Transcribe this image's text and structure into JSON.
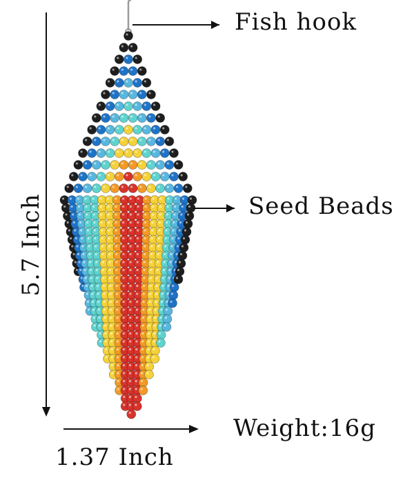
{
  "labels": {
    "fish_hook": "Fish hook",
    "seed_beads": "Seed Beads",
    "weight": "Weight:16g",
    "width": "1.37 Inch",
    "height": "5.7 Inch"
  },
  "colors": {
    "background": "#ffffff",
    "text": "#111111",
    "arrow": "#111111",
    "bead_black": "#1e1e1e",
    "bead_blue": "#1f73c7",
    "bead_light_blue": "#58b7de",
    "bead_turquoise": "#5fd3cf",
    "bead_yellow": "#f5d23a",
    "bead_orange": "#f29a25",
    "bead_red": "#d8332b",
    "hook_silver": "#9a9a9a"
  },
  "earring": {
    "bead_rows": [
      [
        "black"
      ],
      [
        "black",
        "black"
      ],
      [
        "black",
        "blue",
        "black"
      ],
      [
        "black",
        "blue",
        "blue",
        "black"
      ],
      [
        "black",
        "blue",
        "lightblue",
        "blue",
        "black"
      ],
      [
        "black",
        "blue",
        "lightblue",
        "lightblue",
        "blue",
        "black"
      ],
      [
        "black",
        "blue",
        "lightblue",
        "turquoise",
        "lightblue",
        "blue",
        "black"
      ],
      [
        "black",
        "blue",
        "lightblue",
        "turquoise",
        "turquoise",
        "lightblue",
        "blue",
        "black"
      ],
      [
        "black",
        "blue",
        "lightblue",
        "turquoise",
        "yellow",
        "turquoise",
        "lightblue",
        "blue",
        "black"
      ],
      [
        "black",
        "blue",
        "lightblue",
        "turquoise",
        "yellow",
        "yellow",
        "turquoise",
        "lightblue",
        "blue",
        "black"
      ],
      [
        "black",
        "blue",
        "lightblue",
        "turquoise",
        "yellow",
        "yellow",
        "yellow",
        "turquoise",
        "lightblue",
        "blue",
        "black"
      ],
      [
        "black",
        "blue",
        "lightblue",
        "turquoise",
        "yellow",
        "orange",
        "orange",
        "yellow",
        "turquoise",
        "lightblue",
        "blue",
        "black"
      ],
      [
        "black",
        "blue",
        "lightblue",
        "turquoise",
        "yellow",
        "orange",
        "red",
        "orange",
        "yellow",
        "turquoise",
        "lightblue",
        "blue",
        "black"
      ],
      [
        "black",
        "blue",
        "lightblue",
        "turquoise",
        "yellow",
        "orange",
        "red",
        "red",
        "orange",
        "yellow",
        "turquoise",
        "lightblue",
        "blue",
        "black"
      ]
    ],
    "fringe_strands": [
      {
        "color": "black",
        "length": 10
      },
      {
        "color": "blue",
        "length": 12
      },
      {
        "color": "lightblue",
        "length": 15
      },
      {
        "color": "turquoise",
        "length": 17
      },
      {
        "color": "turquoise",
        "length": 19
      },
      {
        "color": "yellow",
        "length": 21
      },
      {
        "color": "yellow",
        "length": 23
      },
      {
        "color": "orange",
        "length": 25
      },
      {
        "color": "red",
        "length": 27
      },
      {
        "color": "red",
        "length": 28
      },
      {
        "color": "red",
        "length": 27
      },
      {
        "color": "orange",
        "length": 25
      },
      {
        "color": "yellow",
        "length": 23
      },
      {
        "color": "yellow",
        "length": 21
      },
      {
        "color": "turquoise",
        "length": 19
      },
      {
        "color": "lightblue",
        "length": 17
      },
      {
        "color": "blue",
        "length": 14
      },
      {
        "color": "black",
        "length": 11
      }
    ]
  }
}
